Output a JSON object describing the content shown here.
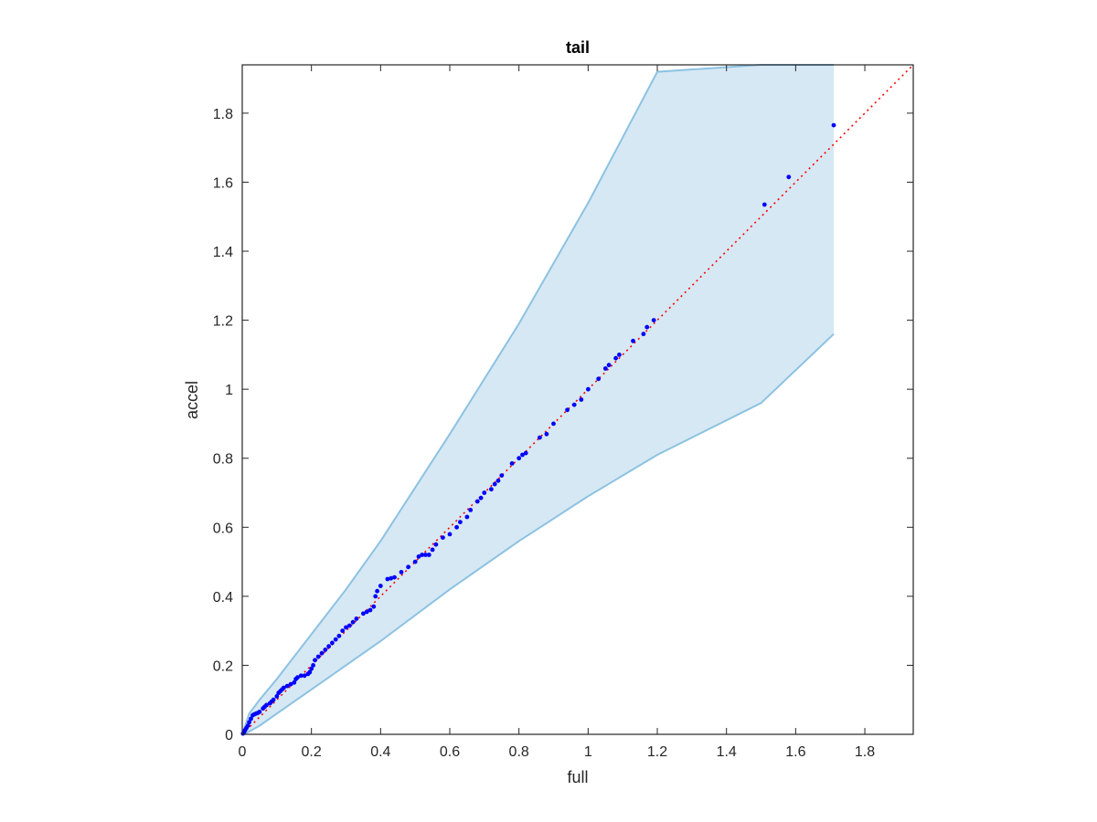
{
  "chart_data": {
    "type": "scatter",
    "title": "tail",
    "xlabel": "full",
    "ylabel": "accel",
    "xlim": [
      0,
      1.94
    ],
    "ylim": [
      0,
      1.94
    ],
    "xticks": [
      "0",
      "0.2",
      "0.4",
      "0.6",
      "0.8",
      "1",
      "1.2",
      "1.4",
      "1.6",
      "1.8"
    ],
    "yticks": [
      "0",
      "0.2",
      "0.4",
      "0.6",
      "0.8",
      "1",
      "1.2",
      "1.4",
      "1.6",
      "1.8"
    ],
    "grid": false,
    "colors": {
      "points": "#0000ff",
      "reference_line": "#ff0000",
      "band_fill": "#d6e8f4",
      "band_edge": "#8cc2e2",
      "axes": "#262626"
    },
    "reference_line": {
      "style": "dotted",
      "x": [
        0,
        1.94
      ],
      "y": [
        0,
        1.94
      ]
    },
    "confidence_band": {
      "x": [
        0,
        0.02,
        0.05,
        0.1,
        0.2,
        0.3,
        0.4,
        0.6,
        0.8,
        1.0,
        1.2,
        1.5,
        1.71
      ],
      "upper": [
        0,
        0.06,
        0.1,
        0.16,
        0.29,
        0.42,
        0.56,
        0.87,
        1.19,
        1.54,
        1.92,
        1.94,
        1.94
      ],
      "lower": [
        0,
        0.008,
        0.025,
        0.06,
        0.13,
        0.2,
        0.27,
        0.42,
        0.56,
        0.69,
        0.81,
        0.96,
        1.16
      ]
    },
    "points": {
      "x": [
        0.002,
        0.005,
        0.008,
        0.012,
        0.016,
        0.02,
        0.025,
        0.03,
        0.035,
        0.04,
        0.045,
        0.05,
        0.06,
        0.065,
        0.07,
        0.08,
        0.085,
        0.09,
        0.1,
        0.105,
        0.11,
        0.115,
        0.12,
        0.13,
        0.14,
        0.15,
        0.155,
        0.16,
        0.17,
        0.18,
        0.19,
        0.195,
        0.2,
        0.205,
        0.21,
        0.22,
        0.23,
        0.24,
        0.25,
        0.26,
        0.27,
        0.28,
        0.29,
        0.3,
        0.31,
        0.32,
        0.33,
        0.35,
        0.36,
        0.37,
        0.38,
        0.385,
        0.39,
        0.4,
        0.42,
        0.43,
        0.44,
        0.46,
        0.48,
        0.5,
        0.51,
        0.52,
        0.53,
        0.54,
        0.55,
        0.56,
        0.58,
        0.6,
        0.62,
        0.63,
        0.65,
        0.66,
        0.68,
        0.69,
        0.7,
        0.72,
        0.73,
        0.74,
        0.75,
        0.78,
        0.8,
        0.81,
        0.82,
        0.86,
        0.88,
        0.9,
        0.94,
        0.96,
        0.98,
        1.0,
        1.03,
        1.05,
        1.06,
        1.08,
        1.09,
        1.13,
        1.16,
        1.17,
        1.19,
        1.51,
        1.58,
        1.71
      ],
      "y": [
        0.002,
        0.006,
        0.012,
        0.018,
        0.025,
        0.035,
        0.045,
        0.055,
        0.058,
        0.06,
        0.062,
        0.065,
        0.075,
        0.08,
        0.085,
        0.09,
        0.095,
        0.1,
        0.11,
        0.12,
        0.125,
        0.13,
        0.135,
        0.14,
        0.145,
        0.15,
        0.16,
        0.165,
        0.17,
        0.17,
        0.175,
        0.18,
        0.19,
        0.2,
        0.215,
        0.225,
        0.235,
        0.245,
        0.255,
        0.265,
        0.275,
        0.285,
        0.3,
        0.31,
        0.315,
        0.325,
        0.335,
        0.35,
        0.355,
        0.36,
        0.37,
        0.4,
        0.415,
        0.43,
        0.45,
        0.452,
        0.455,
        0.47,
        0.485,
        0.5,
        0.515,
        0.52,
        0.52,
        0.52,
        0.535,
        0.55,
        0.57,
        0.58,
        0.6,
        0.615,
        0.63,
        0.65,
        0.675,
        0.685,
        0.7,
        0.71,
        0.725,
        0.735,
        0.75,
        0.785,
        0.8,
        0.81,
        0.815,
        0.86,
        0.87,
        0.9,
        0.94,
        0.955,
        0.97,
        1.0,
        1.03,
        1.06,
        1.07,
        1.09,
        1.1,
        1.14,
        1.16,
        1.18,
        1.2,
        1.535,
        1.615,
        1.765
      ]
    }
  }
}
